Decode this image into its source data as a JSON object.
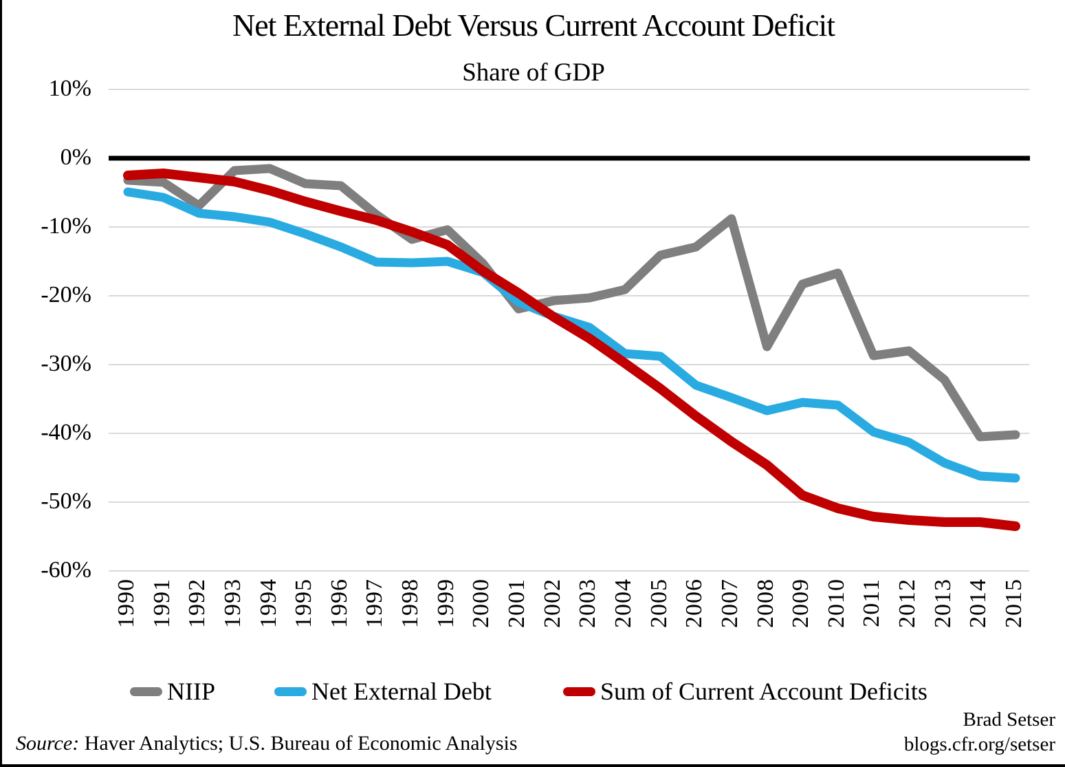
{
  "header": {
    "title": "Net External Debt Versus Current Account Deficit",
    "subtitle": "Share of GDP"
  },
  "chart_data": {
    "type": "line",
    "x": [
      1990,
      1991,
      1992,
      1993,
      1994,
      1995,
      1996,
      1997,
      1998,
      1999,
      2000,
      2001,
      2002,
      2003,
      2004,
      2005,
      2006,
      2007,
      2008,
      2009,
      2010,
      2011,
      2012,
      2013,
      2014,
      2015
    ],
    "series": [
      {
        "name": "NIIP",
        "color": "#7f7f7f",
        "values": [
          -3.2,
          -3.5,
          -6.9,
          -1.8,
          -1.5,
          -3.7,
          -4.0,
          -8.2,
          -11.8,
          -10.4,
          -15.3,
          -21.9,
          -20.7,
          -20.3,
          -19.1,
          -14.1,
          -12.9,
          -8.8,
          -27.4,
          -18.3,
          -16.7,
          -28.7,
          -28.0,
          -32.2,
          -40.5,
          -40.2
        ]
      },
      {
        "name": "Net External Debt",
        "color": "#29abe2",
        "values": [
          -4.9,
          -5.7,
          -8.0,
          -8.5,
          -9.3,
          -11.0,
          -12.9,
          -15.1,
          -15.2,
          -15.0,
          -16.6,
          -20.9,
          -23.0,
          -24.6,
          -28.4,
          -28.8,
          -33.0,
          -34.8,
          -36.7,
          -35.5,
          -35.9,
          -39.8,
          -41.3,
          -44.3,
          -46.2,
          -46.5
        ]
      },
      {
        "name": "Sum of Current Account Deficits",
        "color": "#c00000",
        "values": [
          -2.5,
          -2.2,
          -2.8,
          -3.4,
          -4.7,
          -6.3,
          -7.7,
          -9.0,
          -10.7,
          -12.6,
          -16.4,
          -19.6,
          -23.1,
          -26.2,
          -29.8,
          -33.5,
          -37.5,
          -41.2,
          -44.6,
          -49.0,
          -50.9,
          -52.1,
          -52.6,
          -52.9,
          -52.9,
          -53.5
        ]
      }
    ],
    "title": "Net External Debt Versus Current Account Deficit",
    "subtitle": "Share of GDP",
    "xlabel": "",
    "ylabel": "",
    "ylim": [
      -60,
      10
    ],
    "grid": true,
    "legend_position": "bottom",
    "y_ticks": [
      {
        "value": 10,
        "label": "10%"
      },
      {
        "value": 0,
        "label": "0%"
      },
      {
        "value": -10,
        "label": "-10%"
      },
      {
        "value": -20,
        "label": "-20%"
      },
      {
        "value": -30,
        "label": "-30%"
      },
      {
        "value": -40,
        "label": "-40%"
      },
      {
        "value": -50,
        "label": "-50%"
      },
      {
        "value": -60,
        "label": "-60%"
      }
    ]
  },
  "colors": {
    "zero_axis": "#000000",
    "gridline": "#d9d9d9",
    "background": "#ffffff"
  },
  "footer": {
    "source_prefix": "Source:",
    "source_text": " Haver Analytics; U.S. Bureau of Economic Analysis",
    "attribution_line1": "Brad Setser",
    "attribution_line2": "blogs.cfr.org/setser"
  }
}
